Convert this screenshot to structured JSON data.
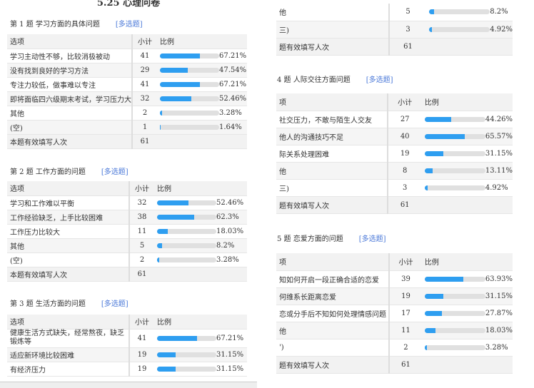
{
  "doc_title": "5.25 心理问卷",
  "headers": {
    "option": "选项",
    "count": "小计",
    "ratio": "比例"
  },
  "right_headers": {
    "option": "项",
    "count": "小计",
    "ratio": "比例"
  },
  "colors": {
    "bar_fill": "#2e9ef0",
    "bar_track": "#e0e0e0",
    "tag": "#4a78d8"
  },
  "left": [
    {
      "title": "第 1 题  学习方面的具体问题",
      "tag": "[多选题]",
      "rows": [
        {
          "option": "学习主动性不够，比较消极被动",
          "count": "41",
          "pct": 67.21,
          "label": "67.21%"
        },
        {
          "option": "没有找到良好的学习方法",
          "count": "29",
          "pct": 47.54,
          "label": "47.54%"
        },
        {
          "option": "专注力较低，做事难以专注",
          "count": "41",
          "pct": 67.21,
          "label": "67.21%"
        },
        {
          "option": "即将面临四六级期末考试，学习压力大",
          "count": "32",
          "pct": 52.46,
          "label": "52.46%"
        },
        {
          "option": "其他",
          "count": "2",
          "pct": 3.28,
          "label": "3.28%"
        },
        {
          "option": "(空)",
          "count": "1",
          "pct": 1.64,
          "label": "1.64%"
        }
      ],
      "total_label": "本题有效填写人次",
      "total": "61"
    },
    {
      "title": "第 2 题  工作方面的问题",
      "tag": "[多选题]",
      "rows": [
        {
          "option": "学习和工作难以平衡",
          "count": "32",
          "pct": 52.46,
          "label": "52.46%"
        },
        {
          "option": "工作经验缺乏，上手比较困难",
          "count": "38",
          "pct": 62.3,
          "label": "62.3%"
        },
        {
          "option": "工作压力比较大",
          "count": "11",
          "pct": 18.03,
          "label": "18.03%"
        },
        {
          "option": "其他",
          "count": "5",
          "pct": 8.2,
          "label": "8.2%"
        },
        {
          "option": "(空)",
          "count": "2",
          "pct": 3.28,
          "label": "3.28%"
        }
      ],
      "total_label": "本题有效填写人次",
      "total": "61"
    },
    {
      "title": "第 3 题  生活方面的问题",
      "tag": "[多选题]",
      "rows": [
        {
          "option": "健康生活方式缺失，经常熬夜，缺乏锻炼等",
          "count": "41",
          "pct": 67.21,
          "label": "67.21%"
        },
        {
          "option": "适应新环境比较困难",
          "count": "19",
          "pct": 31.15,
          "label": "31.15%"
        },
        {
          "option": "有经济压力",
          "count": "19",
          "pct": 31.15,
          "label": "31.15%"
        }
      ]
    }
  ],
  "right": [
    {
      "rows": [
        {
          "option": "他",
          "count": "5",
          "pct": 8.2,
          "label": "8.2%"
        },
        {
          "option": "三)",
          "count": "3",
          "pct": 4.92,
          "label": "4.92%"
        }
      ],
      "total_label": "题有效填写人次",
      "total": "61"
    },
    {
      "title": "4 题  人际交往方面问题",
      "tag": "[多选题]",
      "rows": [
        {
          "option": "社交压力，不敢与陌生人交友",
          "count": "27",
          "pct": 44.26,
          "label": "44.26%"
        },
        {
          "option": "他人的沟通技巧不足",
          "count": "40",
          "pct": 65.57,
          "label": "65.57%"
        },
        {
          "option": "际关系处理困难",
          "count": "19",
          "pct": 31.15,
          "label": "31.15%"
        },
        {
          "option": "他",
          "count": "8",
          "pct": 13.11,
          "label": "13.11%"
        },
        {
          "option": "三)",
          "count": "3",
          "pct": 4.92,
          "label": "4.92%"
        }
      ],
      "total_label": "题有效填写人次",
      "total": "61"
    },
    {
      "title": "5 题  恋爱方面的问题",
      "tag": "[多选题]",
      "rows": [
        {
          "option": "知如何开启一段正确合适的恋爱",
          "count": "39",
          "pct": 63.93,
          "label": "63.93%"
        },
        {
          "option": "何维系长距离恋爱",
          "count": "19",
          "pct": 31.15,
          "label": "31.15%"
        },
        {
          "option": "恋或分手后不知如何处理情感问题",
          "count": "17",
          "pct": 27.87,
          "label": "27.87%"
        },
        {
          "option": "他",
          "count": "11",
          "pct": 18.03,
          "label": "18.03%"
        },
        {
          "option": "')",
          "count": "2",
          "pct": 3.28,
          "label": "3.28%"
        }
      ],
      "total_label": "题有效填写人次",
      "total": "61"
    }
  ]
}
